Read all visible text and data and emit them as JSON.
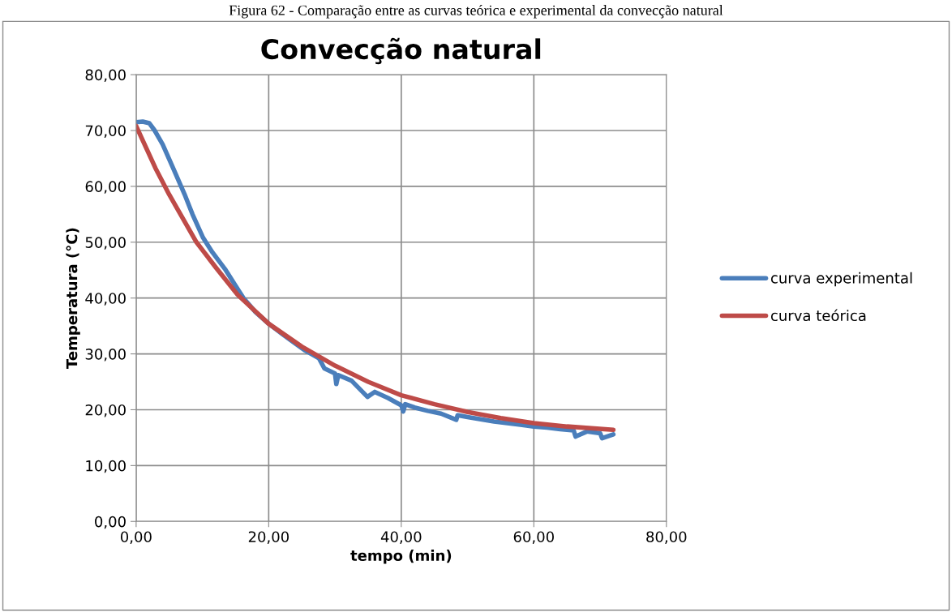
{
  "chart_data": {
    "type": "line",
    "title": "Convecção natural",
    "xlabel": "tempo (min)",
    "ylabel": "Temperatura (°C)",
    "annotations": [
      "Figura 62 - Comparação entre as curvas teórica e experimental da convecção natural"
    ],
    "xlim": [
      0,
      80
    ],
    "ylim": [
      0,
      80
    ],
    "xticks": [
      {
        "value": 0,
        "label": "0,00"
      },
      {
        "value": 20,
        "label": "20,00"
      },
      {
        "value": 40,
        "label": "40,00"
      },
      {
        "value": 60,
        "label": "60,00"
      },
      {
        "value": 80,
        "label": "80,00"
      }
    ],
    "yticks": [
      {
        "value": 0,
        "label": "0,00"
      },
      {
        "value": 10,
        "label": "10,00"
      },
      {
        "value": 20,
        "label": "20,00"
      },
      {
        "value": 30,
        "label": "30,00"
      },
      {
        "value": 40,
        "label": "40,00"
      },
      {
        "value": 50,
        "label": "50,00"
      },
      {
        "value": 60,
        "label": "60,00"
      },
      {
        "value": 70,
        "label": "70,00"
      },
      {
        "value": 80,
        "label": "80,00"
      }
    ],
    "grid": true,
    "legend": "right",
    "marker": "none",
    "line_style": "solid",
    "series": [
      {
        "name": "curva experimental",
        "color": "#4a7ebb",
        "x": [
          0,
          1,
          2,
          2.8,
          4,
          5.5,
          7.3,
          8.5,
          10.1,
          11.5,
          13.4,
          15,
          16.2,
          18,
          20,
          22,
          23.5,
          25.5,
          27.6,
          28.4,
          30,
          30.2,
          30.5,
          32.5,
          34.9,
          36,
          38,
          40,
          40.3,
          40.6,
          42,
          44,
          46,
          48.3,
          48.5,
          50,
          52,
          54,
          56,
          58,
          60,
          62,
          64,
          66,
          66.3,
          68,
          70,
          70.3,
          72
        ],
        "values": [
          71.5,
          71.6,
          71.3,
          70,
          67.5,
          63.5,
          58.6,
          55,
          50.8,
          48.2,
          45.2,
          42.2,
          40,
          37.5,
          35.4,
          33.6,
          32.3,
          30.6,
          29.2,
          27.4,
          26.5,
          24.6,
          26.2,
          25.2,
          22.3,
          23.2,
          22.1,
          20.8,
          19.7,
          21,
          20.4,
          19.8,
          19.3,
          18.2,
          19,
          18.7,
          18.3,
          17.9,
          17.6,
          17.3,
          17,
          16.8,
          16.5,
          16.3,
          15.2,
          16.1,
          15.8,
          14.9,
          15.6
        ]
      },
      {
        "name": "curva teórica",
        "color": "#be4b48",
        "x": [
          0,
          2.9,
          5,
          9.1,
          12,
          15.3,
          20,
          25,
          30,
          35,
          40,
          45,
          50,
          55,
          60,
          65,
          72
        ],
        "values": [
          70.8,
          63.3,
          58.5,
          50,
          45.5,
          40.6,
          35.4,
          31.3,
          27.9,
          25,
          22.6,
          21,
          19.6,
          18.5,
          17.6,
          17,
          16.4
        ]
      }
    ]
  }
}
